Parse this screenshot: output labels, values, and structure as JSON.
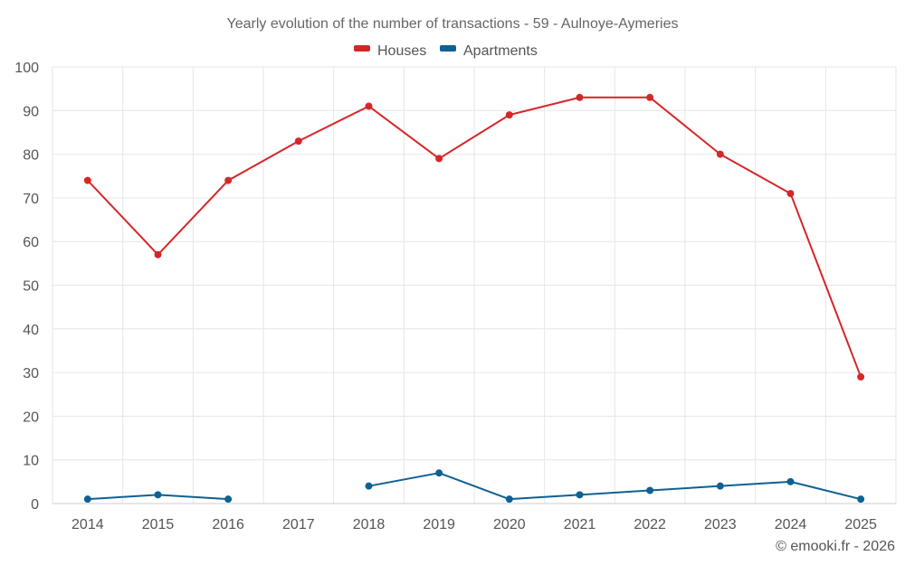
{
  "chart_data": {
    "type": "line",
    "title": "Yearly evolution of the number of transactions - 59 - Aulnoye-Aymeries",
    "categories": [
      "2014",
      "2015",
      "2016",
      "2017",
      "2018",
      "2019",
      "2020",
      "2021",
      "2022",
      "2023",
      "2024",
      "2025"
    ],
    "series": [
      {
        "name": "Houses",
        "color": "#d62728",
        "values": [
          74,
          57,
          74,
          83,
          91,
          79,
          89,
          93,
          93,
          80,
          71,
          29
        ]
      },
      {
        "name": "Apartments",
        "color": "#0e6193",
        "values": [
          1,
          2,
          1,
          null,
          4,
          7,
          1,
          2,
          3,
          4,
          5,
          1
        ]
      }
    ],
    "ylim": [
      0,
      100
    ],
    "yticks": [
      0,
      10,
      20,
      30,
      40,
      50,
      60,
      70,
      80,
      90,
      100
    ],
    "xlabel": "",
    "ylabel": "",
    "grid": true,
    "legend": "top-center"
  },
  "credit": "© emooki.fr - 2026"
}
